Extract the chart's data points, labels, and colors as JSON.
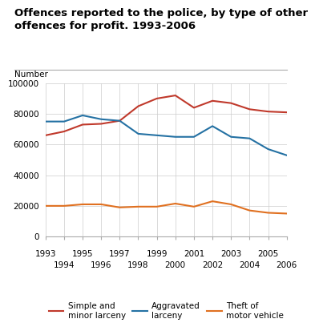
{
  "title_line1": "Offences reported to the police, by type of other",
  "title_line2": "offences for profit. 1993-2006",
  "ylabel": "Number",
  "years": [
    1993,
    1994,
    1995,
    1996,
    1997,
    1998,
    1999,
    2000,
    2001,
    2002,
    2003,
    2004,
    2005,
    2006
  ],
  "series": {
    "Simple and\nminor larceny": {
      "color": "#c0392b",
      "values": [
        66000,
        68500,
        73000,
        73500,
        75500,
        85000,
        90000,
        92000,
        84000,
        88500,
        87000,
        83000,
        81500,
        81000
      ]
    },
    "Aggravated\nlarceny": {
      "color": "#2471a3",
      "values": [
        75000,
        75000,
        79000,
        76500,
        75500,
        67000,
        66000,
        65000,
        65000,
        72000,
        65000,
        64000,
        57000,
        53000
      ]
    },
    "Theft of\nmotor vehicle": {
      "color": "#e07020",
      "values": [
        20000,
        20000,
        21000,
        21000,
        19000,
        19500,
        19500,
        21500,
        19500,
        23000,
        21000,
        17000,
        15500,
        15000
      ]
    }
  },
  "ylim": [
    0,
    100000
  ],
  "yticks": [
    0,
    20000,
    40000,
    60000,
    80000,
    100000
  ],
  "background_color": "#ffffff",
  "grid_color": "#cccccc",
  "title_fontsize": 9.5,
  "legend_fontsize": 7.5,
  "axis_label_fontsize": 7.5,
  "tick_fontsize": 7.5
}
